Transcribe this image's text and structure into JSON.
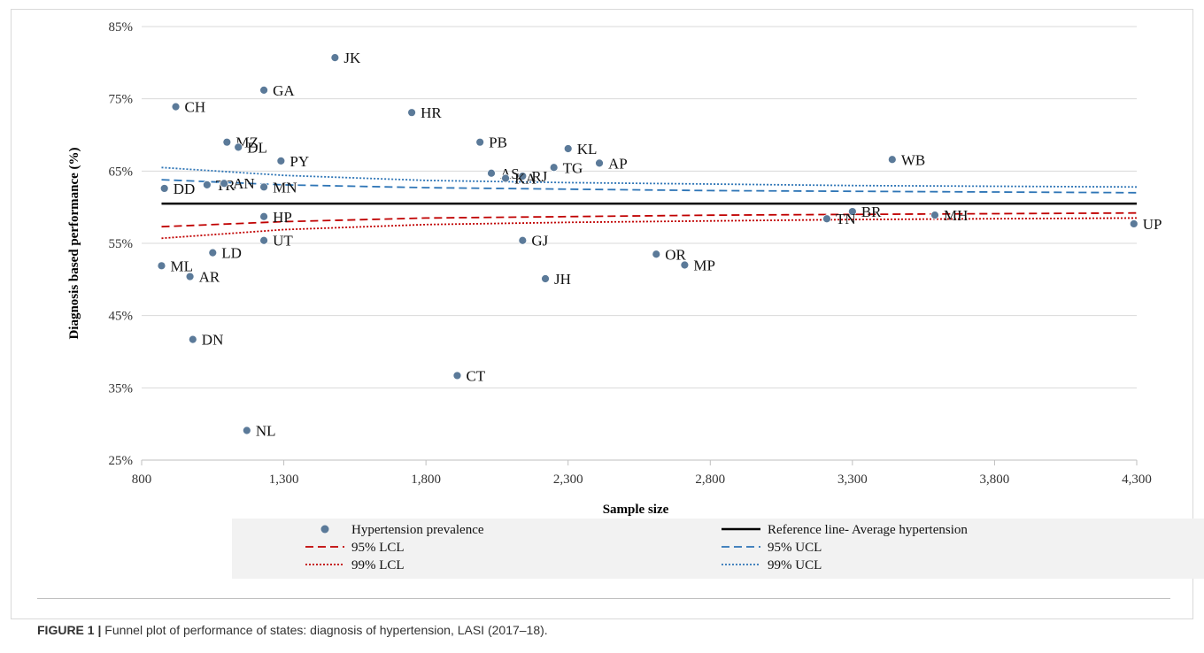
{
  "chart_data": {
    "type": "scatter",
    "xlabel": "Sample size",
    "ylabel": "Diagnosis based performance (%)",
    "xlim": [
      800,
      4300
    ],
    "ylim": [
      25,
      85
    ],
    "x_ticks": [
      "800",
      "1,300",
      "1,800",
      "2,300",
      "2,800",
      "3,300",
      "3,800",
      "4,300"
    ],
    "y_ticks": [
      "25%",
      "35%",
      "45%",
      "55%",
      "65%",
      "75%",
      "85%"
    ],
    "grid": "horizontal",
    "legend_position": "bottom",
    "series": [
      {
        "name": "Hypertension prevalence",
        "color": "#5b7a99",
        "points": [
          {
            "label": "JK",
            "x": 1480,
            "y": 80.7
          },
          {
            "label": "GA",
            "x": 1230,
            "y": 76.2
          },
          {
            "label": "CH",
            "x": 920,
            "y": 73.9
          },
          {
            "label": "HR",
            "x": 1750,
            "y": 73.1
          },
          {
            "label": "MZ",
            "x": 1100,
            "y": 69.0
          },
          {
            "label": "PB",
            "x": 1990,
            "y": 69.0
          },
          {
            "label": "DL",
            "x": 1140,
            "y": 68.3
          },
          {
            "label": "KL",
            "x": 2300,
            "y": 68.1
          },
          {
            "label": "PY",
            "x": 1290,
            "y": 66.4
          },
          {
            "label": "WB",
            "x": 3440,
            "y": 66.6
          },
          {
            "label": "AP",
            "x": 2410,
            "y": 66.1
          },
          {
            "label": "TG",
            "x": 2250,
            "y": 65.5
          },
          {
            "label": "AS",
            "x": 2030,
            "y": 64.7
          },
          {
            "label": "RJ",
            "x": 2140,
            "y": 64.3
          },
          {
            "label": "KA",
            "x": 2080,
            "y": 64.0
          },
          {
            "label": "TR",
            "x": 1030,
            "y": 63.1
          },
          {
            "label": "AN",
            "x": 1090,
            "y": 63.3
          },
          {
            "label": "MN",
            "x": 1230,
            "y": 62.8
          },
          {
            "label": "DD",
            "x": 880,
            "y": 62.6
          },
          {
            "label": "BR",
            "x": 3300,
            "y": 59.4
          },
          {
            "label": "MH",
            "x": 3590,
            "y": 58.9
          },
          {
            "label": "HP",
            "x": 1230,
            "y": 58.7
          },
          {
            "label": "TN",
            "x": 3210,
            "y": 58.4
          },
          {
            "label": "UP",
            "x": 4290,
            "y": 57.7
          },
          {
            "label": "UT",
            "x": 1230,
            "y": 55.4
          },
          {
            "label": "GJ",
            "x": 2140,
            "y": 55.4
          },
          {
            "label": "LD",
            "x": 1050,
            "y": 53.7
          },
          {
            "label": "OR",
            "x": 2610,
            "y": 53.5
          },
          {
            "label": "MP",
            "x": 2710,
            "y": 52.0
          },
          {
            "label": "ML",
            "x": 870,
            "y": 51.9
          },
          {
            "label": "AR",
            "x": 970,
            "y": 50.4
          },
          {
            "label": "JH",
            "x": 2220,
            "y": 50.1
          },
          {
            "label": "DN",
            "x": 980,
            "y": 41.7
          },
          {
            "label": "CT",
            "x": 1910,
            "y": 36.7
          },
          {
            "label": "NL",
            "x": 1170,
            "y": 29.1
          }
        ]
      }
    ],
    "lines": [
      {
        "name": "Reference line- Average hypertension",
        "color": "#000000",
        "style": "solid",
        "x": [
          870,
          4300
        ],
        "y": [
          60.5,
          60.5
        ]
      },
      {
        "name": "95% LCL",
        "color": "#c00000",
        "style": "dashed",
        "x": [
          870,
          1300,
          1800,
          2300,
          2800,
          3300,
          3800,
          4300
        ],
        "y": [
          57.3,
          58.0,
          58.5,
          58.7,
          58.9,
          59.0,
          59.1,
          59.2
        ]
      },
      {
        "name": "95% UCL",
        "color": "#2e75b6",
        "style": "dashed",
        "x": [
          870,
          1300,
          1800,
          2300,
          2800,
          3300,
          3800,
          4300
        ],
        "y": [
          63.8,
          63.1,
          62.7,
          62.5,
          62.3,
          62.2,
          62.1,
          62.0
        ]
      },
      {
        "name": "99% LCL",
        "color": "#c00000",
        "style": "dotted",
        "x": [
          870,
          1300,
          1800,
          2300,
          2800,
          3300,
          3800,
          4300
        ],
        "y": [
          55.7,
          56.9,
          57.6,
          57.9,
          58.1,
          58.3,
          58.4,
          58.5
        ]
      },
      {
        "name": "99% UCL",
        "color": "#2e75b6",
        "style": "dotted",
        "x": [
          870,
          1300,
          1800,
          2300,
          2800,
          3300,
          3800,
          4300
        ],
        "y": [
          65.5,
          64.4,
          63.7,
          63.4,
          63.2,
          63.0,
          62.9,
          62.8
        ]
      }
    ],
    "legend": [
      "Hypertension prevalence",
      "Reference line- Average hypertension",
      "95% LCL",
      "95% UCL",
      "99% LCL",
      "99% UCL"
    ]
  },
  "caption": {
    "label": "FIGURE 1 |",
    "text": " Funnel plot of performance of states: diagnosis of hypertension, LASI (2017–18)."
  }
}
